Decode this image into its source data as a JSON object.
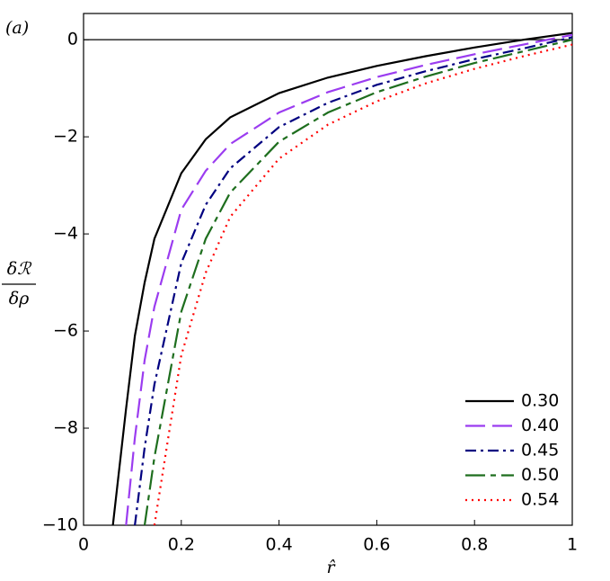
{
  "chart_data": {
    "type": "line",
    "panel_label": "(a)",
    "xlabel": "r̂",
    "ylabel": {
      "numerator": "δℛ",
      "denominator": "δρ"
    },
    "x": [
      0.06,
      0.087,
      0.105,
      0.125,
      0.145,
      0.2,
      0.25,
      0.3,
      0.4,
      0.5,
      0.6,
      0.7,
      0.8,
      0.9,
      1.0
    ],
    "series": [
      {
        "name": "0.30",
        "color": "#000000",
        "dash": "solid",
        "values": [
          -10,
          -7.6,
          -6.1,
          -5.0,
          -4.1,
          -2.75,
          -2.05,
          -1.6,
          -1.1,
          -0.78,
          -0.54,
          -0.34,
          -0.16,
          0.0,
          0.14
        ]
      },
      {
        "name": "0.40",
        "color": "#9b3cf0",
        "dash": "long-dash",
        "values": [
          null,
          -10,
          -8.2,
          -6.6,
          -5.5,
          -3.5,
          -2.7,
          -2.15,
          -1.5,
          -1.08,
          -0.77,
          -0.52,
          -0.3,
          -0.1,
          0.1
        ]
      },
      {
        "name": "0.45",
        "color": "#000080",
        "dash": "dash-dot",
        "values": [
          null,
          null,
          -10,
          -8.4,
          -7.1,
          -4.6,
          -3.4,
          -2.65,
          -1.8,
          -1.3,
          -0.93,
          -0.65,
          -0.4,
          -0.18,
          0.05
        ]
      },
      {
        "name": "0.50",
        "color": "#1e6e1e",
        "dash": "long-short",
        "values": [
          null,
          null,
          null,
          -10,
          -8.6,
          -5.6,
          -4.1,
          -3.15,
          -2.1,
          -1.5,
          -1.08,
          -0.76,
          -0.48,
          -0.24,
          0.0
        ]
      },
      {
        "name": "0.54",
        "color": "#ff0000",
        "dash": "dotted",
        "values": [
          null,
          null,
          null,
          null,
          -10,
          -6.5,
          -4.8,
          -3.65,
          -2.45,
          -1.75,
          -1.27,
          -0.9,
          -0.6,
          -0.34,
          -0.1
        ]
      }
    ],
    "hlines": [
      0
    ],
    "xlim": [
      0,
      1
    ],
    "ylim": [
      -10,
      0.54
    ],
    "xticks": [
      0,
      0.2,
      0.4,
      0.6,
      0.8,
      1
    ],
    "yticks": [
      0,
      {
        "value": -2,
        "label": "−2"
      },
      {
        "value": -4,
        "label": "−4"
      },
      {
        "value": -6,
        "label": "−6"
      },
      {
        "value": -8,
        "label": "−8"
      },
      {
        "value": -10,
        "label": "−10"
      }
    ],
    "legend": "bottom-right"
  }
}
